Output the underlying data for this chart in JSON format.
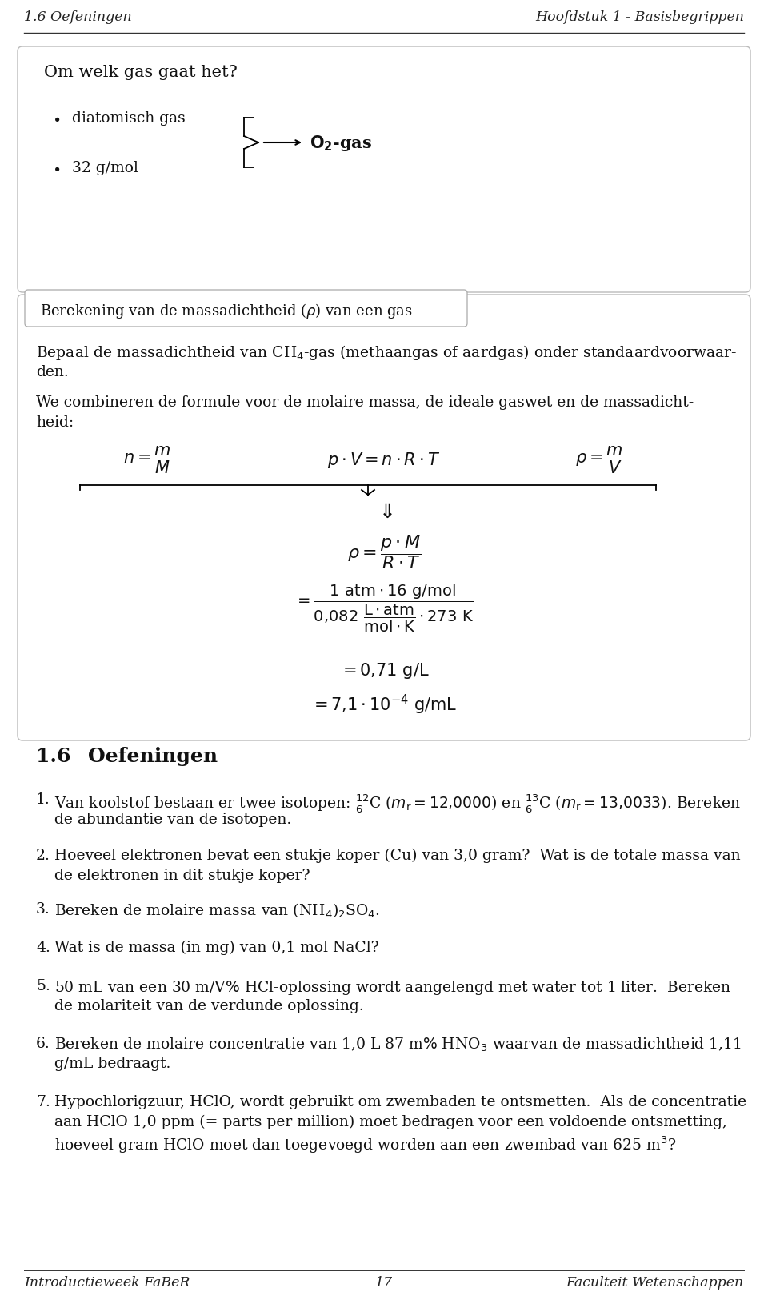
{
  "header_left": "1.6 Oefeningen",
  "header_right": "Hoofdstuk 1 - Basisbegrippen",
  "footer_left": "Introductieweek FaBeR",
  "footer_center": "17",
  "footer_right": "Faculteit Wetenschappen",
  "bg_color": "#ffffff"
}
